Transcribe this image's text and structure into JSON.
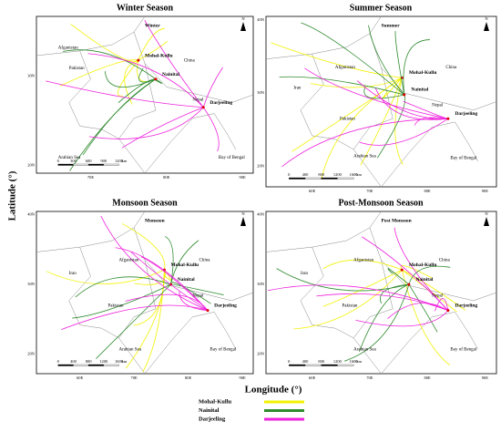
{
  "figure": {
    "y_label": "Latitude (°)",
    "x_label": "Longitude (°)",
    "north_label": "N"
  },
  "panels": [
    {
      "title": "Winter Season",
      "inset": "Winter",
      "places": [
        "Afganistan",
        "Pakistan",
        "China",
        "Nepal",
        "Arabian Sea",
        "Bay of Bengal",
        "Mohal-Kullu",
        "Nainital",
        "Darjeeling"
      ],
      "lat_ticks": [
        "30N",
        "20N"
      ],
      "lon_ticks": [
        "70E",
        "80E",
        "90E"
      ],
      "scale": [
        "0",
        "300",
        "600",
        "900",
        "1200",
        "km"
      ]
    },
    {
      "title": "Summer Season",
      "inset": "Summer",
      "places": [
        "Afganistan",
        "Iran",
        "China",
        "Pakistan",
        "Nepal",
        "Arabian Sea",
        "Bay of Bengal",
        "Mohal-Kullu",
        "Nainital",
        "Darjeeling"
      ],
      "lat_ticks": [
        "40N",
        "30N",
        "20N"
      ],
      "lon_ticks": [
        "60E",
        "70E",
        "80E",
        "90E"
      ],
      "scale": [
        "0",
        "400",
        "800",
        "1200",
        "1600",
        "km"
      ]
    },
    {
      "title": "Monsoon Season",
      "inset": "Monsoon",
      "places": [
        "Iran",
        "Afganistan",
        "China",
        "Pakistan",
        "Nepal",
        "Arabian Sea",
        "Bay of Bengal",
        "Mohal-Kullu",
        "Nainital",
        "Darjeeling"
      ],
      "lat_ticks": [
        "40N",
        "30N",
        "20N"
      ],
      "lon_ticks": [
        "60E",
        "70E",
        "80E",
        "90E"
      ],
      "scale": [
        "0",
        "400",
        "800",
        "1200",
        "1600",
        "km"
      ]
    },
    {
      "title": "Post-Monsoon Season",
      "inset": "Post Monsoon",
      "places": [
        "Iran",
        "Afganistan",
        "China",
        "Pakistan",
        "Nepal",
        "Arabian Sea",
        "Bay of Bengal",
        "Mohal-Kullu",
        "Nainital",
        "Darjeeling"
      ],
      "lat_ticks": [
        "40N",
        "30N",
        "20N"
      ],
      "lon_ticks": [
        "60E",
        "70E",
        "80E",
        "90E"
      ],
      "scale": [
        "0",
        "400",
        "800",
        "1200",
        "1600",
        "km"
      ]
    }
  ],
  "legend": [
    {
      "label": "Mohal-Kullu",
      "color": "#f2f200"
    },
    {
      "label": "Nainital",
      "color": "#2e8b2e"
    },
    {
      "label": "Darjeeling",
      "color": "#ee22dd"
    }
  ]
}
